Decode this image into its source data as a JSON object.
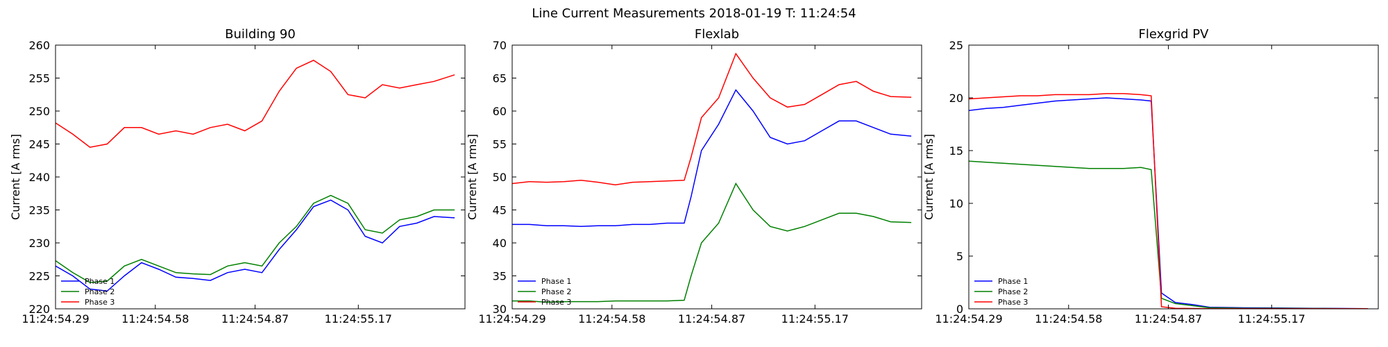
{
  "figure": {
    "suptitle": "Line Current Measurements 2018-01-19 T: 11:24:54"
  },
  "colors": {
    "phase_1": "#0000ff",
    "phase_2": "#008000",
    "phase_3": "#ff0000"
  },
  "chart_data": [
    {
      "type": "line",
      "title": "Building 90",
      "xlabel": "",
      "ylabel": "Current [A rms]",
      "xlim": [
        0,
        1.0
      ],
      "ylim": [
        220,
        260
      ],
      "yticks": [
        220,
        225,
        230,
        235,
        240,
        245,
        250,
        255,
        260
      ],
      "xticks": [
        {
          "value": 0.0,
          "label": "11:24:54.29"
        },
        {
          "value": 0.29,
          "label": "11:24:54.58"
        },
        {
          "value": 0.58,
          "label": "11:24:54.87"
        },
        {
          "value": 0.88,
          "label": "11:24:55.17"
        }
      ],
      "legend": "lower-left",
      "grid": false,
      "x": [
        0.0,
        0.05,
        0.1,
        0.15,
        0.2,
        0.25,
        0.3,
        0.35,
        0.4,
        0.45,
        0.5,
        0.55,
        0.6,
        0.65,
        0.7,
        0.75,
        0.8,
        0.85,
        0.9,
        0.95,
        1.0,
        1.05,
        1.1,
        1.16
      ],
      "series": [
        {
          "name": "Phase 1",
          "color": "#0000ff",
          "values": [
            226.5,
            225,
            223,
            222.7,
            225,
            227,
            226,
            224.8,
            224.6,
            224.3,
            225.5,
            226,
            225.5,
            229,
            232,
            235.5,
            236.5,
            235,
            231,
            230,
            232.5,
            233,
            234,
            233.8
          ]
        },
        {
          "name": "Phase 2",
          "color": "#008000",
          "values": [
            227.3,
            225.5,
            224,
            224.2,
            226.5,
            227.5,
            226.5,
            225.5,
            225.3,
            225.2,
            226.5,
            227,
            226.5,
            230,
            232.5,
            236,
            237.2,
            236,
            232,
            231.5,
            233.5,
            234,
            235,
            235
          ]
        },
        {
          "name": "Phase 3",
          "color": "#ff0000",
          "values": [
            248.2,
            246.5,
            244.5,
            245,
            247.5,
            247.5,
            246.5,
            247,
            246.5,
            247.5,
            248,
            247,
            248.5,
            253,
            256.5,
            257.7,
            256,
            252.5,
            252,
            254,
            253.5,
            254,
            254.5,
            255.5
          ]
        }
      ]
    },
    {
      "type": "line",
      "title": "Flexlab",
      "xlabel": "",
      "ylabel": "Current [A rms]",
      "xlim": [
        0,
        1.0
      ],
      "ylim": [
        30,
        70
      ],
      "yticks": [
        30,
        35,
        40,
        45,
        50,
        55,
        60,
        65,
        70
      ],
      "xticks": [
        {
          "value": 0.0,
          "label": "11:24:54.29"
        },
        {
          "value": 0.29,
          "label": "11:24:54.58"
        },
        {
          "value": 0.58,
          "label": "11:24:54.87"
        },
        {
          "value": 0.88,
          "label": "11:24:55.17"
        }
      ],
      "legend": "lower-left",
      "grid": false,
      "x": [
        0.0,
        0.05,
        0.1,
        0.15,
        0.2,
        0.25,
        0.3,
        0.35,
        0.4,
        0.45,
        0.5,
        0.52,
        0.55,
        0.6,
        0.65,
        0.7,
        0.75,
        0.8,
        0.85,
        0.9,
        0.95,
        1.0,
        1.05,
        1.1,
        1.16
      ],
      "series": [
        {
          "name": "Phase 1",
          "color": "#0000ff",
          "values": [
            42.8,
            42.8,
            42.6,
            42.6,
            42.5,
            42.6,
            42.6,
            42.8,
            42.8,
            43,
            43,
            47,
            54,
            58,
            63.2,
            60,
            56,
            55,
            55.5,
            57,
            58.5,
            58.5,
            57.5,
            56.5,
            56.2
          ]
        },
        {
          "name": "Phase 2",
          "color": "#008000",
          "values": [
            31.2,
            31.2,
            31,
            31.1,
            31.1,
            31.1,
            31.2,
            31.2,
            31.2,
            31.2,
            31.3,
            35,
            40,
            43,
            49,
            45,
            42.5,
            41.8,
            42.5,
            43.5,
            44.5,
            44.5,
            44,
            43.2,
            43.1
          ]
        },
        {
          "name": "Phase 3",
          "color": "#ff0000",
          "values": [
            49,
            49.3,
            49.2,
            49.3,
            49.5,
            49.2,
            48.8,
            49.2,
            49.3,
            49.4,
            49.5,
            53,
            59,
            62,
            68.7,
            65,
            62,
            60.6,
            61,
            62.5,
            64,
            64.5,
            63,
            62.2,
            62.1
          ]
        }
      ]
    },
    {
      "type": "line",
      "title": "Flexgrid PV",
      "xlabel": "",
      "ylabel": "Current [A rms]",
      "xlim": [
        0,
        1.0
      ],
      "ylim": [
        0,
        25
      ],
      "yticks": [
        0,
        5,
        10,
        15,
        20,
        25
      ],
      "xticks": [
        {
          "value": 0.0,
          "label": "11:24:54.29"
        },
        {
          "value": 0.29,
          "label": "11:24:54.58"
        },
        {
          "value": 0.58,
          "label": "11:24:54.87"
        },
        {
          "value": 0.88,
          "label": "11:24:55.17"
        }
      ],
      "legend": "lower-left",
      "grid": false,
      "x": [
        0.0,
        0.05,
        0.1,
        0.15,
        0.2,
        0.25,
        0.3,
        0.35,
        0.4,
        0.45,
        0.5,
        0.53,
        0.56,
        0.6,
        0.65,
        0.7,
        0.8,
        0.9,
        1.0,
        1.1,
        1.16
      ],
      "series": [
        {
          "name": "Phase 1",
          "color": "#0000ff",
          "values": [
            18.8,
            19,
            19.1,
            19.3,
            19.5,
            19.7,
            19.8,
            19.9,
            20,
            19.9,
            19.8,
            19.7,
            1.5,
            0.6,
            0.4,
            0.15,
            0.1,
            0.08,
            0.05,
            0.03,
            0.02
          ]
        },
        {
          "name": "Phase 2",
          "color": "#008000",
          "values": [
            14,
            13.9,
            13.8,
            13.7,
            13.6,
            13.5,
            13.4,
            13.3,
            13.3,
            13.3,
            13.4,
            13.2,
            1,
            0.5,
            0.3,
            0.1,
            0.05,
            0.05,
            0.03,
            0.02,
            0.02
          ]
        },
        {
          "name": "Phase 3",
          "color": "#ff0000",
          "values": [
            19.9,
            20,
            20.1,
            20.2,
            20.2,
            20.3,
            20.3,
            20.3,
            20.4,
            20.4,
            20.3,
            20.2,
            0.2,
            0.05,
            0.03,
            0.02,
            0.02,
            0.02,
            0.02,
            0.02,
            0.02
          ]
        }
      ]
    }
  ]
}
